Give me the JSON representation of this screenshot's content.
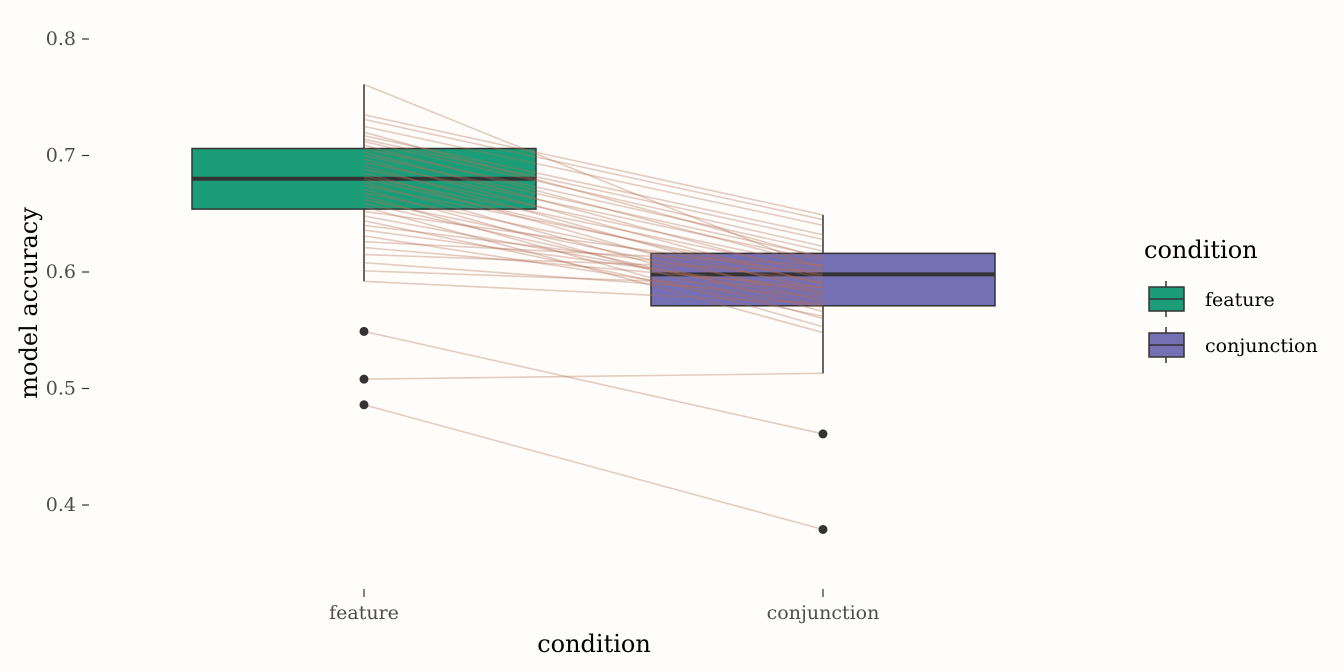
{
  "chart_data": {
    "type": "boxplot",
    "xlabel": "condition",
    "ylabel": "model accuracy",
    "categories": [
      "feature",
      "conjunction"
    ],
    "ylim": [
      0.33,
      0.81
    ],
    "yticks": [
      0.4,
      0.5,
      0.6,
      0.7,
      0.8
    ],
    "ytick_labels": [
      "0.4",
      "0.5",
      "0.6",
      "0.7",
      "0.8"
    ],
    "legend": {
      "title": "condition",
      "position": "right",
      "entries": [
        {
          "label": "feature",
          "color": "#1b9e77"
        },
        {
          "label": "conjunction",
          "color": "#7570b3"
        }
      ]
    },
    "boxes": [
      {
        "category": "feature",
        "q1": 0.654,
        "median": 0.68,
        "q3": 0.706,
        "whisker_low": 0.592,
        "whisker_high": 0.761,
        "outliers": [
          0.549,
          0.508,
          0.486
        ],
        "color": "#1b9e77"
      },
      {
        "category": "conjunction",
        "q1": 0.571,
        "median": 0.598,
        "q3": 0.616,
        "whisker_low": 0.513,
        "whisker_high": 0.649,
        "outliers": [
          0.461,
          0.379
        ],
        "color": "#7570b3"
      }
    ],
    "paired_lines_color": "#b36d58",
    "paired_lines": [
      [
        0.761,
        0.602
      ],
      [
        0.735,
        0.649
      ],
      [
        0.731,
        0.645
      ],
      [
        0.725,
        0.64
      ],
      [
        0.72,
        0.612
      ],
      [
        0.717,
        0.632
      ],
      [
        0.714,
        0.628
      ],
      [
        0.712,
        0.622
      ],
      [
        0.709,
        0.605
      ],
      [
        0.706,
        0.618
      ],
      [
        0.703,
        0.596
      ],
      [
        0.7,
        0.613
      ],
      [
        0.697,
        0.589
      ],
      [
        0.694,
        0.61
      ],
      [
        0.691,
        0.582
      ],
      [
        0.688,
        0.604
      ],
      [
        0.685,
        0.574
      ],
      [
        0.682,
        0.6
      ],
      [
        0.68,
        0.59
      ],
      [
        0.677,
        0.566
      ],
      [
        0.674,
        0.595
      ],
      [
        0.671,
        0.56
      ],
      [
        0.668,
        0.586
      ],
      [
        0.665,
        0.553
      ],
      [
        0.662,
        0.58
      ],
      [
        0.659,
        0.571
      ],
      [
        0.656,
        0.548
      ],
      [
        0.652,
        0.598
      ],
      [
        0.648,
        0.576
      ],
      [
        0.644,
        0.562
      ],
      [
        0.64,
        0.592
      ],
      [
        0.636,
        0.583
      ],
      [
        0.631,
        0.57
      ],
      [
        0.626,
        0.606
      ],
      [
        0.621,
        0.587
      ],
      [
        0.615,
        0.601
      ],
      [
        0.608,
        0.579
      ],
      [
        0.601,
        0.587
      ],
      [
        0.592,
        0.573
      ],
      [
        0.549,
        0.461
      ],
      [
        0.508,
        0.513
      ],
      [
        0.486,
        0.379
      ]
    ]
  }
}
